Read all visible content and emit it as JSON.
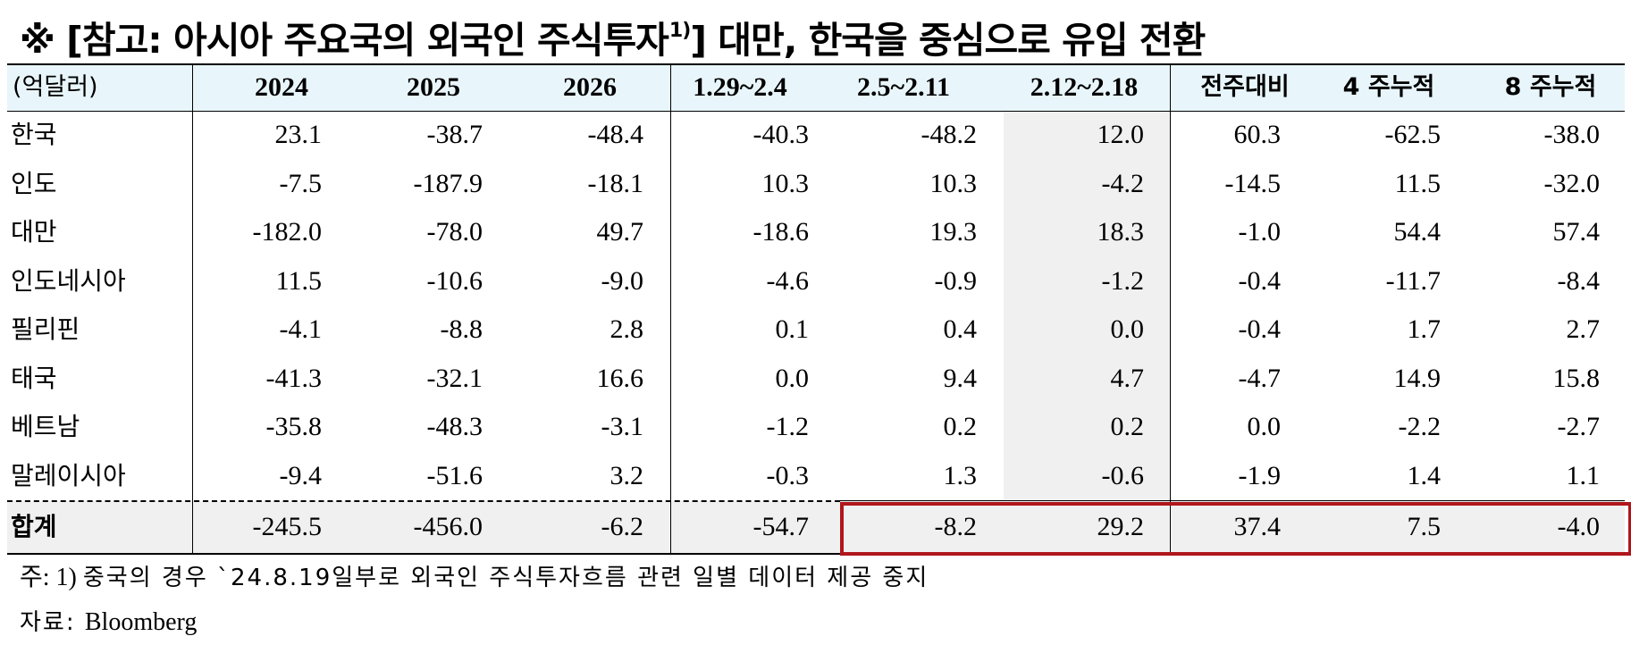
{
  "title": {
    "text": "※ [참고: 아시아 주요국의 외국인 주식투자",
    "superscript": "1)",
    "suffix": "] 대만, 한국을 중심으로 유입 전환"
  },
  "chart_data": {
    "type": "table",
    "unit_label": "(억달러)",
    "columns": [
      "2024",
      "2025",
      "2026",
      "1.29~2.4",
      "2.5~2.11",
      "2.12~2.18",
      "전주대비",
      "4 주누적",
      "8 주누적"
    ],
    "rows": [
      {
        "label": "한국",
        "values": [
          "23.1",
          "-38.7",
          "-48.4",
          "-40.3",
          "-48.2",
          "12.0",
          "60.3",
          "-62.5",
          "-38.0"
        ]
      },
      {
        "label": "인도",
        "values": [
          "-7.5",
          "-187.9",
          "-18.1",
          "10.3",
          "10.3",
          "-4.2",
          "-14.5",
          "11.5",
          "-32.0"
        ]
      },
      {
        "label": "대만",
        "values": [
          "-182.0",
          "-78.0",
          "49.7",
          "-18.6",
          "19.3",
          "18.3",
          "-1.0",
          "54.4",
          "57.4"
        ]
      },
      {
        "label": "인도네시아",
        "values": [
          "11.5",
          "-10.6",
          "-9.0",
          "-4.6",
          "-0.9",
          "-1.2",
          "-0.4",
          "-11.7",
          "-8.4"
        ]
      },
      {
        "label": "필리핀",
        "values": [
          "-4.1",
          "-8.8",
          "2.8",
          "0.1",
          "0.4",
          "0.0",
          "-0.4",
          "1.7",
          "2.7"
        ]
      },
      {
        "label": "태국",
        "values": [
          "-41.3",
          "-32.1",
          "16.6",
          "0.0",
          "9.4",
          "4.7",
          "-4.7",
          "14.9",
          "15.8"
        ]
      },
      {
        "label": "베트남",
        "values": [
          "-35.8",
          "-48.3",
          "-3.1",
          "-1.2",
          "0.2",
          "0.2",
          "0.0",
          "-2.2",
          "-2.7"
        ]
      },
      {
        "label": "말레이시아",
        "values": [
          "-9.4",
          "-51.6",
          "3.2",
          "-0.3",
          "1.3",
          "-0.6",
          "-1.9",
          "1.4",
          "1.1"
        ]
      }
    ],
    "total": {
      "label": "합계",
      "values": [
        "-245.5",
        "-456.0",
        "-6.2",
        "-54.7",
        "-8.2",
        "29.2",
        "37.4",
        "7.5",
        "-4.0"
      ]
    },
    "highlighted_column": "2.12~2.18",
    "highlight_box_color": "#b0161b",
    "header_color": "#e8f6fb"
  },
  "notes": {
    "note1_prefix": "주: 1) ",
    "note1_text": "중국의 경우 `24.8.19일부로 외국인 주식투자흐름 관련 일별 데이터 제공 중지",
    "source_prefix": "자료: ",
    "source_text": "Bloomberg"
  }
}
